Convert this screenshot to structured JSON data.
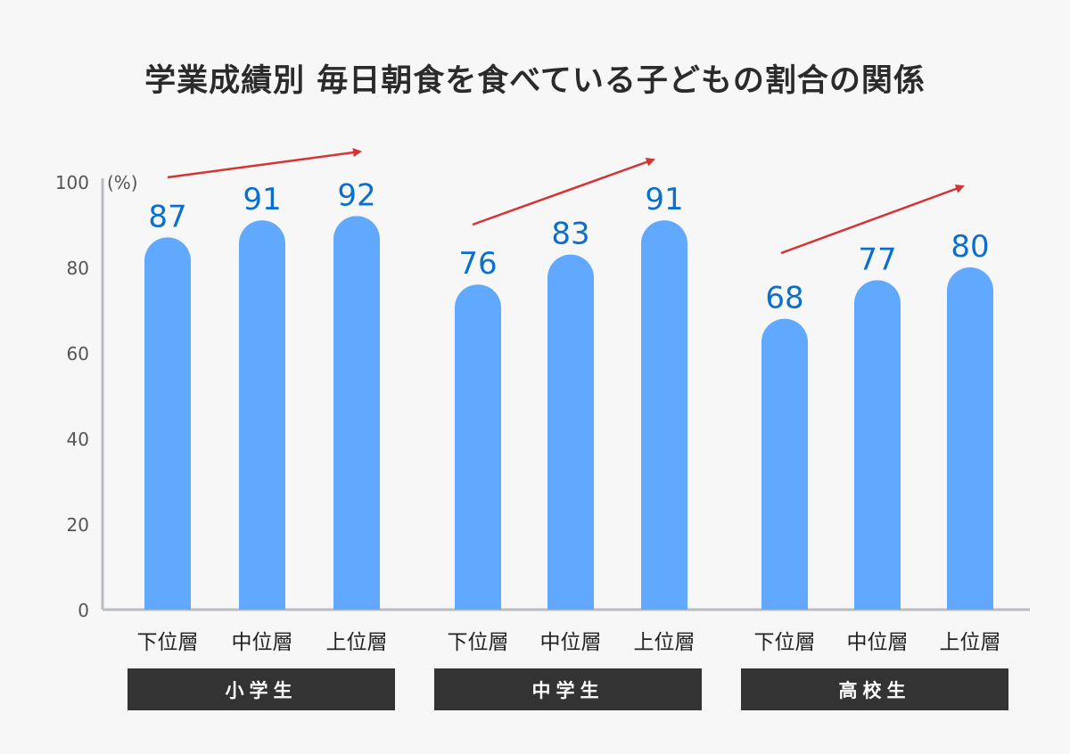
{
  "chart_data": {
    "type": "bar",
    "title": "学業成績別 毎日朝食を食べている子どもの割合の関係",
    "ylabel": "(%)",
    "ylim": [
      0,
      100
    ],
    "yticks": [
      0,
      20,
      40,
      60,
      80,
      100
    ],
    "grid": false,
    "categories": [
      "下位層",
      "中位層",
      "上位層"
    ],
    "groups": [
      {
        "name": "小学生",
        "values": [
          87,
          91,
          92
        ]
      },
      {
        "name": "中学生",
        "values": [
          76,
          83,
          91
        ]
      },
      {
        "name": "高校生",
        "values": [
          68,
          77,
          80
        ]
      }
    ],
    "annotations": [
      "trend-arrow",
      "trend-arrow",
      "trend-arrow"
    ],
    "colors": {
      "bar": "#60a9ff",
      "value_label": "#0b6fce",
      "arrow": "#d63333",
      "axis": "#b9bcc0",
      "group_label_bg": "#333333"
    }
  }
}
